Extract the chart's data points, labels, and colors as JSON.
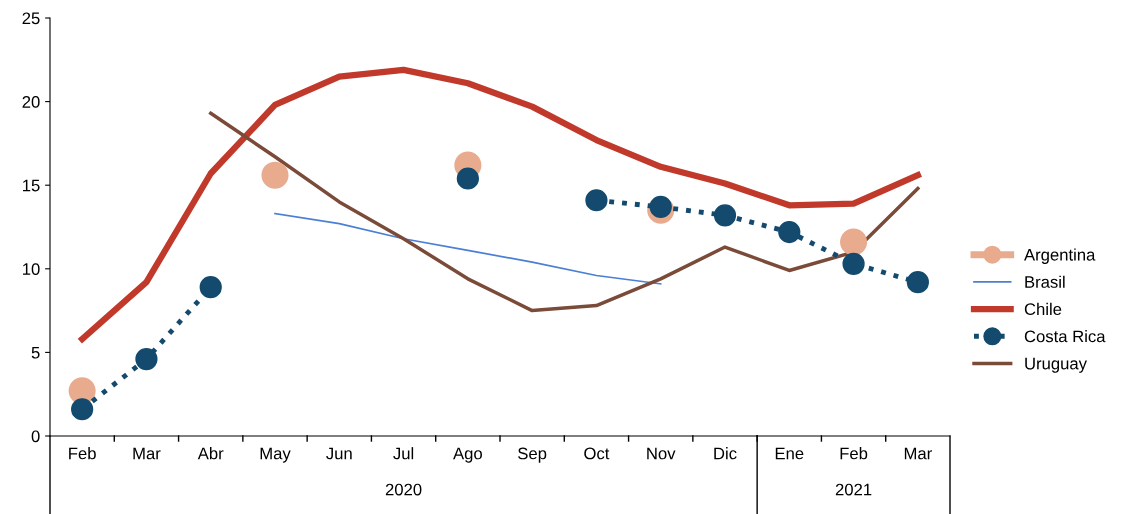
{
  "chart_data": {
    "type": "line",
    "categories": [
      "Feb",
      "Mar",
      "Abr",
      "May",
      "Jun",
      "Jul",
      "Ago",
      "Sep",
      "Oct",
      "Nov",
      "Dic",
      "Ene",
      "Feb",
      "Mar"
    ],
    "annotations": [
      "2020",
      "2021"
    ],
    "ylim": [
      0,
      25
    ],
    "yticks": [
      0,
      5,
      10,
      15,
      20,
      25
    ],
    "grid": false,
    "legend": "right",
    "series": [
      {
        "name": "Argentina",
        "type": "scatter",
        "color": "#e9ab8e",
        "marker": "circle",
        "values": [
          2.7,
          null,
          null,
          15.6,
          null,
          null,
          16.2,
          null,
          null,
          13.5,
          null,
          null,
          11.6,
          null
        ]
      },
      {
        "name": "Brasil",
        "color": "#4a7fd4",
        "marker": "none",
        "line_style": "solid",
        "values": [
          null,
          null,
          null,
          13.3,
          12.7,
          11.8,
          11.1,
          10.4,
          9.6,
          9.1,
          null,
          null,
          null,
          null
        ]
      },
      {
        "name": "Chile",
        "color": "#c0392b",
        "marker": "none",
        "line_style": "solid",
        "values": [
          5.8,
          9.2,
          15.7,
          19.8,
          21.5,
          21.9,
          21.1,
          19.7,
          17.7,
          16.1,
          15.1,
          13.8,
          13.9,
          15.6
        ]
      },
      {
        "name": "Costa Rica",
        "color": "#134a6e",
        "marker": "circle",
        "line_style": "dotted",
        "values": [
          1.6,
          4.6,
          8.9,
          null,
          null,
          null,
          15.4,
          null,
          14.1,
          13.7,
          13.2,
          12.2,
          10.3,
          9.2
        ]
      },
      {
        "name": "Uruguay",
        "color": "#7b4b3a",
        "marker": "none",
        "line_style": "solid",
        "values": [
          null,
          null,
          19.3,
          16.7,
          14.0,
          11.8,
          9.4,
          7.5,
          7.8,
          9.4,
          11.3,
          9.9,
          11.0,
          14.8
        ]
      }
    ]
  }
}
